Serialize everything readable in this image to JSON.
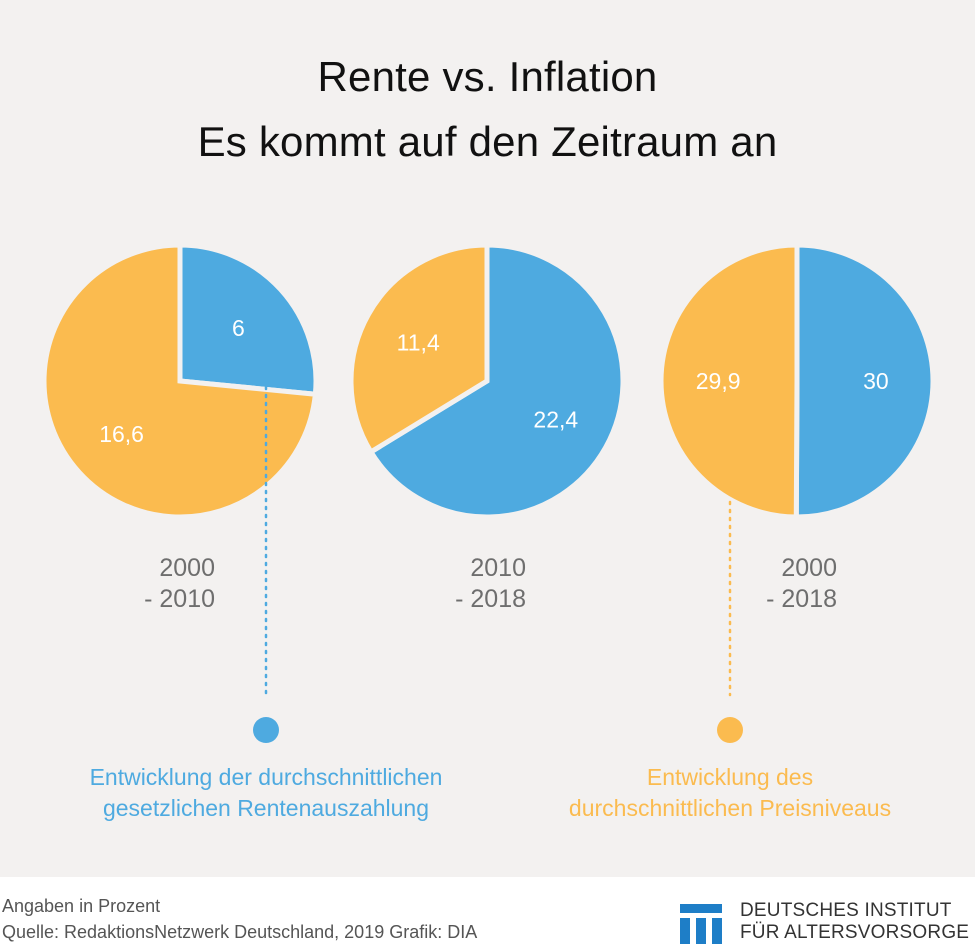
{
  "title_line1": "Rente vs. Inflation",
  "title_line2": "Es kommt auf den Zeitraum an",
  "colors": {
    "rente": "#4eaae0",
    "preis": "#fbbb4f",
    "background": "#f3f1f0",
    "period_text": "#6e6e6e"
  },
  "chart_data": {
    "type": "pie",
    "title": "Rente vs. Inflation – Es kommt auf den Zeitraum an",
    "unit": "Prozent",
    "series_names": [
      "Entwicklung der durchschnittlichen gesetzlichen Rentenauszahlung",
      "Entwicklung des durchschnittlichen Preisniveaus"
    ],
    "pies": [
      {
        "period_line1": "2000",
        "period_line2": "- 2010",
        "rente": 6,
        "preis": 16.6,
        "rente_label": "6",
        "preis_label": "16,6"
      },
      {
        "period_line1": "2010",
        "period_line2": "- 2018",
        "rente": 22.4,
        "preis": 11.4,
        "rente_label": "22,4",
        "preis_label": "11,4"
      },
      {
        "period_line1": "2000",
        "period_line2": "- 2018",
        "rente": 30,
        "preis": 29.9,
        "rente_label": "30",
        "preis_label": "29,9"
      }
    ]
  },
  "legend": {
    "rente": {
      "line1": "Entwicklung der durchschnittlichen",
      "line2": "gesetzlichen Rentenauszahlung"
    },
    "preis": {
      "line1": "Entwicklung des",
      "line2": "durchschnittlichen Preisniveaus"
    }
  },
  "footer": {
    "note": "Angaben in Prozent",
    "source": "Quelle: RedaktionsNetzwerk Deutschland, 2019  Grafik: DIA",
    "logo_line1": "DEUTSCHES INSTITUT",
    "logo_line2": "FÜR ALTERSVORSORGE"
  }
}
